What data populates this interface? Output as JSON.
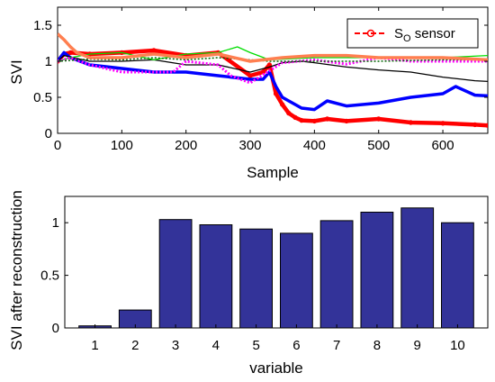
{
  "chart_data": [
    {
      "type": "line",
      "title": "",
      "xlabel": "Sample",
      "ylabel": "SVI",
      "xlim": [
        0,
        670
      ],
      "ylim": [
        0,
        1.75
      ],
      "x_ticks": [
        0,
        100,
        200,
        300,
        400,
        500,
        600
      ],
      "y_ticks": [
        0,
        0.5,
        1,
        1.5
      ],
      "x_tick_labels": [
        "0",
        "100",
        "200",
        "300",
        "400",
        "500",
        "600"
      ],
      "y_tick_labels": [
        "0",
        "0.5",
        "1",
        "1.5"
      ],
      "grid": false,
      "legend": {
        "placement": "top-right",
        "entries": [
          {
            "prefix": "S",
            "subscript": "O",
            "suffix": " sensor",
            "color": "#ff0000",
            "style": "dashed-circle"
          }
        ]
      },
      "series": [
        {
          "color": "#ff0000",
          "style": "circles",
          "x": [
            0,
            10,
            20,
            50,
            100,
            150,
            200,
            250,
            300,
            320,
            330,
            340,
            350,
            360,
            370,
            380,
            400,
            420,
            450,
            500,
            550,
            600,
            650,
            670
          ],
          "y": [
            1.0,
            1.1,
            1.12,
            1.1,
            1.12,
            1.15,
            1.08,
            1.12,
            0.8,
            0.85,
            0.95,
            0.55,
            0.4,
            0.28,
            0.22,
            0.18,
            0.17,
            0.2,
            0.17,
            0.2,
            0.15,
            0.14,
            0.12,
            0.11
          ]
        },
        {
          "color": "#0000ff",
          "style": "solid-thick",
          "x": [
            0,
            10,
            20,
            50,
            100,
            150,
            200,
            250,
            300,
            320,
            330,
            340,
            350,
            360,
            370,
            380,
            400,
            420,
            450,
            500,
            550,
            600,
            620,
            650,
            670
          ],
          "y": [
            1.0,
            1.12,
            1.05,
            0.95,
            0.9,
            0.85,
            0.85,
            0.8,
            0.75,
            0.75,
            0.85,
            0.65,
            0.5,
            0.45,
            0.4,
            0.35,
            0.33,
            0.45,
            0.38,
            0.42,
            0.5,
            0.55,
            0.65,
            0.53,
            0.52
          ]
        },
        {
          "color": "#000000",
          "style": "solid",
          "x": [
            0,
            10,
            50,
            100,
            150,
            200,
            250,
            300,
            330,
            350,
            380,
            400,
            450,
            500,
            550,
            600,
            650,
            670
          ],
          "y": [
            1.0,
            1.08,
            1.0,
            1.0,
            1.02,
            0.95,
            0.95,
            0.85,
            0.92,
            0.98,
            1.0,
            0.98,
            0.92,
            0.88,
            0.85,
            0.78,
            0.73,
            0.72
          ]
        },
        {
          "color": "#00dd00",
          "style": "solid",
          "x": [
            0,
            20,
            50,
            100,
            150,
            200,
            250,
            280,
            300,
            330,
            400,
            500,
            600,
            670
          ],
          "y": [
            1.0,
            1.05,
            1.1,
            1.12,
            1.02,
            1.1,
            1.12,
            1.2,
            1.12,
            1.02,
            1.05,
            1.05,
            1.05,
            1.08
          ]
        },
        {
          "color": "#ff00ff",
          "style": "dotted-thick",
          "x": [
            0,
            20,
            50,
            100,
            150,
            180,
            200,
            250,
            270,
            300,
            350,
            400,
            450,
            500,
            550,
            600,
            670
          ],
          "y": [
            1.0,
            1.05,
            0.95,
            0.85,
            0.85,
            0.85,
            1.0,
            0.95,
            0.8,
            0.7,
            0.98,
            1.02,
            0.96,
            1.05,
            1.0,
            1.0,
            1.0
          ]
        },
        {
          "color": "#006600",
          "style": "dotted",
          "x": [
            0,
            50,
            100,
            150,
            200,
            250,
            300,
            330,
            400,
            500,
            600,
            670
          ],
          "y": [
            1.0,
            1.03,
            1.02,
            1.05,
            1.02,
            1.05,
            1.02,
            1.0,
            1.0,
            1.0,
            1.02,
            1.02
          ]
        },
        {
          "color": "#ff7f50",
          "style": "solid-thick",
          "x": [
            0,
            10,
            20,
            30,
            50,
            100,
            150,
            200,
            250,
            300,
            350,
            400,
            450,
            500,
            550,
            600,
            650,
            670
          ],
          "y": [
            1.38,
            1.3,
            1.2,
            1.12,
            1.05,
            1.05,
            1.1,
            1.05,
            1.1,
            1.0,
            1.05,
            1.08,
            1.08,
            1.05,
            1.05,
            1.05,
            1.03,
            1.02
          ]
        }
      ]
    },
    {
      "type": "bar",
      "title": "",
      "xlabel": "variable",
      "ylabel": "SVI after reconstruction",
      "categories": [
        "1",
        "2",
        "3",
        "4",
        "5",
        "6",
        "7",
        "8",
        "9",
        "10"
      ],
      "values": [
        0.02,
        0.17,
        1.03,
        0.98,
        0.94,
        0.9,
        1.02,
        1.1,
        1.14,
        1.0
      ],
      "ylim": [
        0,
        1.25
      ],
      "y_ticks": [
        0,
        0.5,
        1
      ],
      "y_tick_labels": [
        "0",
        "0.5",
        "1"
      ],
      "color": "#333399",
      "grid": false
    }
  ]
}
